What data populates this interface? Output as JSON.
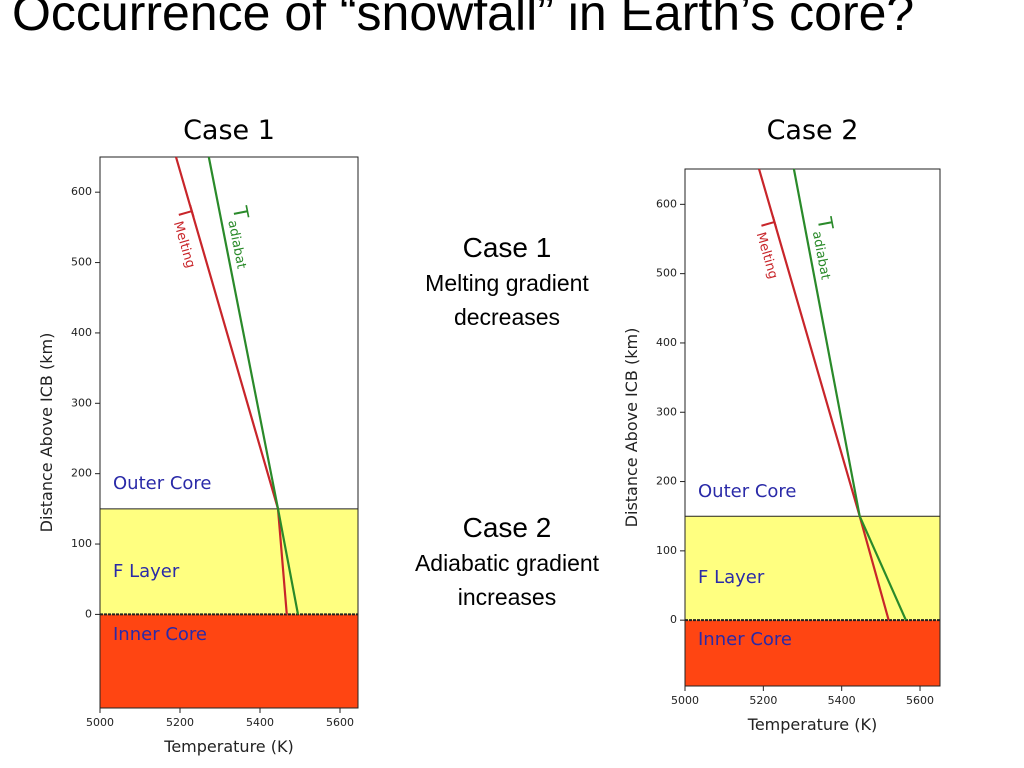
{
  "title": "Occurrence of “snowfall” in Earth’s core?",
  "notes": [
    {
      "heading": "Case 1",
      "text": "Melting gradient decreases"
    },
    {
      "heading": "Case 2",
      "text": "Adiabatic gradient increases"
    }
  ],
  "chart_data": [
    {
      "type": "line",
      "title": "Case 1",
      "x_label": "Temperature (K)",
      "y_label": "Distance Above ICB (km)",
      "xlim": [
        5000,
        5645
      ],
      "ylim": [
        -133,
        650
      ],
      "xticks": [
        5000,
        5200,
        5400,
        5600
      ],
      "yticks": [
        0,
        100,
        200,
        300,
        400,
        500,
        600
      ],
      "regions": [
        {
          "name": "Inner Core",
          "from": -133,
          "to": 0,
          "color": "#ff4512"
        },
        {
          "name": "F Layer",
          "from": 0,
          "to": 150,
          "color": "#ffff80"
        },
        {
          "name": "Outer Core",
          "from": 150,
          "to": 650,
          "color": "#ffffff"
        }
      ],
      "series": [
        {
          "name": "T",
          "subscript": "Melting",
          "color": "#c8252a",
          "x": [
            5190,
            5445,
            5467
          ],
          "values": [
            650,
            150,
            0
          ]
        },
        {
          "name": "T",
          "subscript": "adiabat",
          "color": "#2a8a2a",
          "x": [
            5272,
            5445,
            5495
          ],
          "values": [
            650,
            150,
            0
          ]
        }
      ]
    },
    {
      "type": "line",
      "title": "Case 2",
      "x_label": "Temperature (K)",
      "y_label": "Distance Above ICB (km)",
      "xlim": [
        5000,
        5651
      ],
      "ylim": [
        -95,
        651
      ],
      "xticks": [
        5000,
        5200,
        5400,
        5600
      ],
      "yticks": [
        0,
        100,
        200,
        300,
        400,
        500,
        600
      ],
      "regions": [
        {
          "name": "Inner Core",
          "from": -95,
          "to": 0,
          "color": "#ff4512"
        },
        {
          "name": "F Layer",
          "from": 0,
          "to": 150,
          "color": "#ffff80"
        },
        {
          "name": "Outer Core",
          "from": 150,
          "to": 651,
          "color": "#ffffff"
        }
      ],
      "series": [
        {
          "name": "T",
          "subscript": "Melting",
          "color": "#c8252a",
          "x": [
            5189,
            5446,
            5520
          ],
          "values": [
            651,
            150,
            0
          ]
        },
        {
          "name": "T",
          "subscript": "adiabat",
          "color": "#2a8a2a",
          "x": [
            5278,
            5446,
            5564
          ],
          "values": [
            651,
            150,
            0
          ]
        }
      ]
    }
  ]
}
